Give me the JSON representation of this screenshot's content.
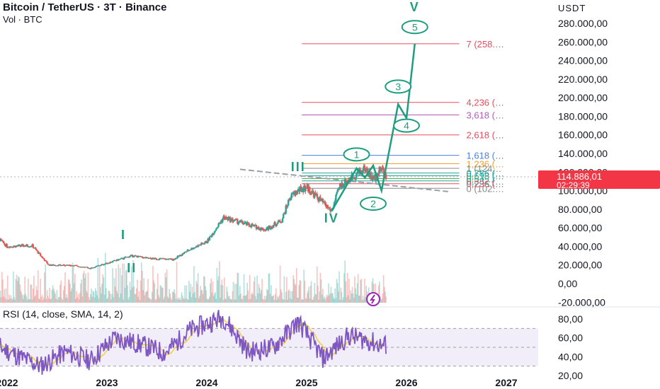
{
  "header": {
    "symbol": "Bitcoin / TetherUS · 3T · Binance",
    "volume_label": "Vol · BTC",
    "currency": "USDT"
  },
  "price_box": {
    "price": "114.886,01",
    "countdown": "02:29:39"
  },
  "rsi": {
    "title": "RSI (14, close, SMA, 14, 2)"
  },
  "colors": {
    "up": "#26a69a",
    "down": "#ef5350",
    "wave": "#1e9e7e",
    "fib_red": "#e84b5f",
    "fib_purple": "#b25ab8",
    "fib_blue": "#4d7fe0",
    "fib_orange": "#f0a030",
    "rsi_line": "#7e57c2",
    "rsi_ma": "#f2d23c",
    "price_tag": "#f23645",
    "lightning": "#9c27b0"
  },
  "chart_data": {
    "type": "candlestick",
    "title": "Bitcoin / TetherUS · 3T · Binance",
    "y_axis_ticks": [
      "-20.000,00",
      "0,00",
      "20.000,00",
      "40.000,00",
      "60.000,00",
      "80.000,00",
      "100.000,00",
      "120.000,00",
      "140.000,00",
      "160.000,00",
      "180.000,00",
      "200.000,00",
      "220.000,00",
      "240.000,00",
      "260.000,00",
      "280.000,00"
    ],
    "y_range": [
      -22000,
      290000
    ],
    "x_axis_ticks": [
      "2022",
      "2023",
      "2024",
      "2025",
      "2026",
      "2027"
    ],
    "price_series": [
      {
        "date": "2021-11",
        "price": 56000
      },
      {
        "date": "2022-01",
        "price": 40000
      },
      {
        "date": "2022-04",
        "price": 41000
      },
      {
        "date": "2022-06",
        "price": 20000
      },
      {
        "date": "2022-09",
        "price": 19500
      },
      {
        "date": "2022-11",
        "price": 16500
      },
      {
        "date": "2023-01",
        "price": 22000
      },
      {
        "date": "2023-04",
        "price": 30000
      },
      {
        "date": "2023-06",
        "price": 27000
      },
      {
        "date": "2023-09",
        "price": 26000
      },
      {
        "date": "2023-11",
        "price": 37000
      },
      {
        "date": "2024-01",
        "price": 45000
      },
      {
        "date": "2024-03",
        "price": 71000
      },
      {
        "date": "2024-05",
        "price": 66000
      },
      {
        "date": "2024-08",
        "price": 58000
      },
      {
        "date": "2024-10",
        "price": 68000
      },
      {
        "date": "2024-11",
        "price": 93000
      },
      {
        "date": "2024-12",
        "price": 100000
      },
      {
        "date": "2025-01",
        "price": 104000
      },
      {
        "date": "2025-02",
        "price": 95000
      },
      {
        "date": "2025-04",
        "price": 78000
      },
      {
        "date": "2025-05",
        "price": 105000
      },
      {
        "date": "2025-07",
        "price": 118000
      },
      {
        "date": "2025-08",
        "price": 124000
      },
      {
        "date": "2025-09",
        "price": 112000
      },
      {
        "date": "2025-10",
        "price": 124000
      },
      {
        "date": "2025-10-20",
        "price": 114886
      }
    ],
    "fib_levels": [
      {
        "label": "7 (258.…",
        "price": 258000,
        "color": "#e84b5f"
      },
      {
        "label": "4,236 (…",
        "price": 195000,
        "color": "#e84b5f"
      },
      {
        "label": "3,618 (…",
        "price": 181500,
        "color": "#b25ab8"
      },
      {
        "label": "2,618 (…",
        "price": 160000,
        "color": "#e84b5f"
      },
      {
        "label": "1,618 (…",
        "price": 138000,
        "color": "#4d7fe0"
      },
      {
        "label": "1,236 (…",
        "price": 129000,
        "color": "#f0a030"
      },
      {
        "label": "1 (124…",
        "price": 124000,
        "color": "#888888"
      },
      {
        "label": "0,786 (…",
        "price": 119000,
        "color": "#26a69a"
      },
      {
        "label": "0,618 (…",
        "price": 116000,
        "color": "#26a69a"
      },
      {
        "label": "0,5 (…",
        "price": 113000,
        "color": "#4caf50"
      },
      {
        "label": "0,382 (…",
        "price": 110500,
        "color": "#26a69a"
      },
      {
        "label": "0,236 (…",
        "price": 107500,
        "color": "#e84b5f"
      },
      {
        "label": "0 (102.…",
        "price": 102500,
        "color": "#888888"
      }
    ],
    "elliott_labels": {
      "major": [
        {
          "label": "I",
          "date": "2023-03",
          "price": 48000
        },
        {
          "label": "II",
          "date": "2023-04",
          "price": 12000
        },
        {
          "label": "III",
          "date": "2024-12",
          "price": 121000
        },
        {
          "label": "IV",
          "date": "2025-04",
          "price": 66000
        },
        {
          "label": "V",
          "date": "2026-02",
          "price": 293000
        }
      ],
      "minor": [
        {
          "label": "1",
          "date": "2025-07",
          "price": 139000
        },
        {
          "label": "2",
          "date": "2025-09",
          "price": 86000
        },
        {
          "label": "3",
          "date": "2025-12",
          "price": 212000
        },
        {
          "label": "4",
          "date": "2026-01",
          "price": 170000
        },
        {
          "label": "5",
          "date": "2026-02",
          "price": 276000
        }
      ]
    },
    "projection_path": [
      {
        "date": "2025-04",
        "price": 78000
      },
      {
        "date": "2025-07",
        "price": 124000
      },
      {
        "date": "2025-08",
        "price": 114000
      },
      {
        "date": "2025-09",
        "price": 127000
      },
      {
        "date": "2025-10",
        "price": 100000
      },
      {
        "date": "2025-12",
        "price": 193000
      },
      {
        "date": "2026-01",
        "price": 178000
      },
      {
        "date": "2026-02",
        "price": 258000
      }
    ],
    "rsi_axis_ticks": [
      "20,00",
      "40,00",
      "60,00",
      "80,00"
    ],
    "rsi_range": [
      18,
      88
    ],
    "rsi_band": [
      30,
      70
    ],
    "rsi_series": [
      {
        "date": "2021-11",
        "rsi": 55
      },
      {
        "date": "2022-02",
        "rsi": 42
      },
      {
        "date": "2022-05",
        "rsi": 30
      },
      {
        "date": "2022-08",
        "rsi": 45
      },
      {
        "date": "2022-11",
        "rsi": 36
      },
      {
        "date": "2023-02",
        "rsi": 60
      },
      {
        "date": "2023-05",
        "rsi": 53
      },
      {
        "date": "2023-08",
        "rsi": 44
      },
      {
        "date": "2023-11",
        "rsi": 68
      },
      {
        "date": "2024-03",
        "rsi": 82
      },
      {
        "date": "2024-06",
        "rsi": 45
      },
      {
        "date": "2024-09",
        "rsi": 50
      },
      {
        "date": "2024-12",
        "rsi": 77
      },
      {
        "date": "2025-03",
        "rsi": 38
      },
      {
        "date": "2025-06",
        "rsi": 62
      },
      {
        "date": "2025-08",
        "rsi": 58
      },
      {
        "date": "2025-10",
        "rsi": 52
      }
    ]
  }
}
